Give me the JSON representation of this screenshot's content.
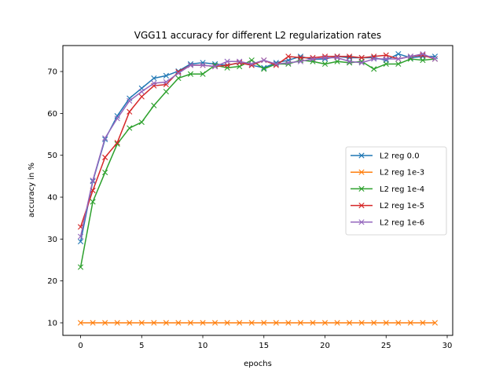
{
  "chart_data": {
    "type": "line",
    "title": "VGG11 accuracy for different L2 regularization rates",
    "xlabel": "epochs",
    "ylabel": "accuracy in %",
    "xlim": [
      -1.45,
      30.45
    ],
    "ylim": [
      7.0,
      76.2
    ],
    "xticks": [
      0,
      5,
      10,
      15,
      20,
      25,
      30
    ],
    "yticks": [
      10,
      20,
      30,
      40,
      50,
      60,
      70
    ],
    "grid": false,
    "legend_position": "center-right",
    "marker": "x",
    "x": [
      0,
      1,
      2,
      3,
      4,
      5,
      6,
      7,
      8,
      9,
      10,
      11,
      12,
      13,
      14,
      15,
      16,
      17,
      18,
      19,
      20,
      21,
      22,
      23,
      24,
      25,
      26,
      27,
      28,
      29
    ],
    "series": [
      {
        "name": "L2 reg 0.0",
        "color": "#1f77b4",
        "values": [
          29.4,
          43.8,
          53.8,
          59.4,
          63.6,
          66.0,
          68.4,
          69.0,
          70.1,
          71.8,
          72.1,
          71.8,
          71.5,
          72.1,
          71.5,
          70.9,
          72.1,
          72.7,
          73.6,
          72.9,
          73.0,
          73.6,
          73.3,
          73.3,
          73.3,
          72.7,
          74.2,
          73.3,
          73.6,
          73.6
        ]
      },
      {
        "name": "L2 reg 1e-3",
        "color": "#ff7f0e",
        "values": [
          10.0,
          10.0,
          10.0,
          10.0,
          10.0,
          10.0,
          10.0,
          10.0,
          10.0,
          10.0,
          10.0,
          10.0,
          10.0,
          10.0,
          10.0,
          10.0,
          10.0,
          10.0,
          10.0,
          10.0,
          10.0,
          10.0,
          10.0,
          10.0,
          10.0,
          10.0,
          10.0,
          10.0,
          10.0,
          10.0
        ]
      },
      {
        "name": "L2 reg 1e-4",
        "color": "#2ca02c",
        "values": [
          23.3,
          38.9,
          45.9,
          52.7,
          56.5,
          57.9,
          61.9,
          65.2,
          68.4,
          69.4,
          69.4,
          71.5,
          70.9,
          71.2,
          72.7,
          70.6,
          71.8,
          71.8,
          72.7,
          72.4,
          71.8,
          72.4,
          72.1,
          72.4,
          70.6,
          71.8,
          71.8,
          73.0,
          72.7,
          73.0
        ]
      },
      {
        "name": "L2 reg 1e-5",
        "color": "#d62728",
        "values": [
          32.9,
          41.6,
          49.5,
          53.0,
          60.4,
          64.0,
          66.6,
          66.9,
          69.9,
          71.5,
          71.5,
          71.2,
          71.5,
          72.1,
          71.5,
          72.7,
          71.5,
          73.6,
          73.3,
          73.3,
          73.6,
          73.6,
          73.6,
          73.3,
          73.6,
          73.9,
          73.0,
          73.6,
          73.9,
          73.0
        ]
      },
      {
        "name": "L2 reg 1e-6",
        "color": "#9467bd",
        "values": [
          30.6,
          44.0,
          54.1,
          58.8,
          63.0,
          65.2,
          67.2,
          67.5,
          69.6,
          71.5,
          71.5,
          71.2,
          72.4,
          72.4,
          71.8,
          72.7,
          71.8,
          72.1,
          72.4,
          73.0,
          73.3,
          73.3,
          72.4,
          72.1,
          73.0,
          73.0,
          73.0,
          73.6,
          74.2,
          73.0
        ]
      }
    ]
  }
}
